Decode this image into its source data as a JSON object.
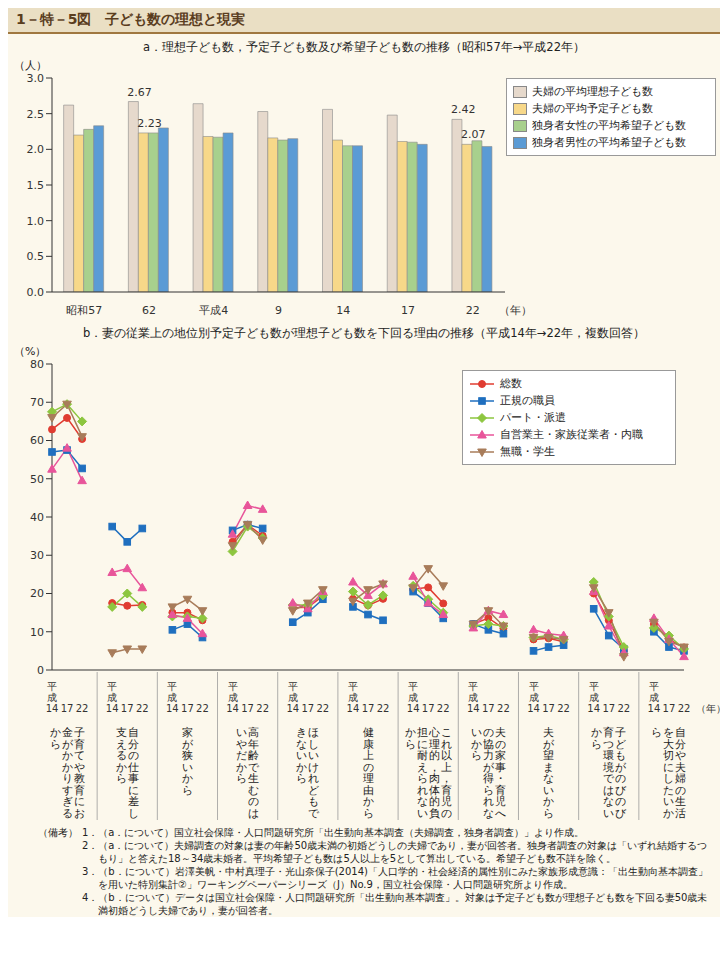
{
  "header": "1－特－5図　子ども数の理想と現実",
  "chart_data": [
    {
      "type": "bar",
      "title": "a．理想子ども数，予定子ども数及び希望子ども数の推移（昭和57年→平成22年）",
      "y_label": "（人）",
      "x_label": "（年）",
      "categories": [
        "昭和57",
        "62",
        "平成4",
        "9",
        "14",
        "17",
        "22"
      ],
      "series": [
        {
          "name": "夫婦の平均理想子ども数",
          "color": "#e6d9cc",
          "values": [
            2.62,
            2.67,
            2.64,
            2.53,
            2.56,
            2.48,
            2.42
          ]
        },
        {
          "name": "夫婦の平均予定子ども数",
          "color": "#f7d889",
          "values": [
            2.2,
            2.23,
            2.18,
            2.16,
            2.13,
            2.11,
            2.07
          ]
        },
        {
          "name": "独身者女性の平均希望子ども数",
          "color": "#a8d08d",
          "values": [
            2.28,
            2.23,
            2.17,
            2.13,
            2.05,
            2.1,
            2.12
          ]
        },
        {
          "name": "独身者男性の平均希望子ども数",
          "color": "#5b9bd5",
          "values": [
            2.33,
            2.3,
            2.23,
            2.15,
            2.05,
            2.07,
            2.04
          ]
        }
      ],
      "annotations": [
        {
          "category": "62",
          "series": "夫婦の平均理想子ども数",
          "label": "2.67"
        },
        {
          "category": "62",
          "series": "夫婦の平均予定子ども数",
          "label": "2.23"
        },
        {
          "category": "22",
          "series": "夫婦の平均理想子ども数",
          "label": "2.42"
        },
        {
          "category": "22",
          "series": "夫婦の平均予定子ども数",
          "label": "2.07"
        }
      ],
      "ylim": [
        0,
        3
      ],
      "yticks": [
        {
          "value": 0,
          "label": "0.0"
        },
        0.5,
        {
          "value": 1,
          "label": "1.0"
        },
        1.5,
        {
          "value": 2,
          "label": "2.0"
        },
        2.5,
        {
          "value": 3,
          "label": "3.0"
        }
      ],
      "grid": false,
      "legend": "right"
    },
    {
      "type": "line",
      "title": "b．妻の従業上の地位別予定子ども数が理想子ども数を下回る理由の推移（平成14年→22年，複数回答）",
      "y_label": "（%）",
      "x_label": "（年）",
      "categories": [
        "平成14",
        "17",
        "22",
        null,
        "平成14",
        "17",
        "22",
        null,
        "平成14",
        "17",
        "22",
        null,
        "平成14",
        "17",
        "22",
        null,
        "平成14",
        "17",
        "22",
        null,
        "平成14",
        "17",
        "22",
        null,
        "平成14",
        "17",
        "22",
        null,
        "平成14",
        "17",
        "22",
        null,
        "平成14",
        "17",
        "22",
        null,
        "平成14",
        "17",
        "22",
        null,
        "平成14",
        "17",
        "22"
      ],
      "groups": [
        "子育てや教育にお金がかかりすぎるから",
        "自分の仕事に差し支えるから",
        "家が狭いから",
        "高年齢で生むのはいやだから",
        "ほしいけれどもできないから",
        "健康上の理由から",
        "これ以上，育児の心理的，肉体的負担に耐えられないから",
        "夫の家事・育児への協力が得られないから",
        "夫が望まないから",
        "子どもがのびのび育つ環境ではないから",
        "自分や夫婦の生活を大切にしたいから"
      ],
      "series": [
        {
          "name": "総数",
          "color": "#e03c31",
          "marker": "circle",
          "values": [
            62.9,
            65.9,
            60.4,
            null,
            17.5,
            16.8,
            17.0,
            null,
            15.0,
            15.0,
            13.0,
            null,
            33.5,
            38.0,
            35.1,
            null,
            16.3,
            16.4,
            19.3,
            null,
            18.6,
            16.9,
            18.6,
            null,
            21.1,
            21.6,
            17.4,
            null,
            12.0,
            13.6,
            10.9,
            null,
            8.0,
            8.3,
            7.4,
            null,
            20.0,
            13.0,
            5.0,
            null,
            12.0,
            8.0,
            5.9
          ]
        },
        {
          "name": "正規の職員",
          "color": "#1f6fbf",
          "marker": "square",
          "values": [
            57.0,
            57.5,
            52.7,
            null,
            37.5,
            33.5,
            37.0,
            null,
            10.5,
            12.0,
            8.5,
            null,
            36.5,
            38.0,
            37.0,
            null,
            12.5,
            15.0,
            18.5,
            null,
            16.5,
            14.5,
            13.0,
            null,
            20.5,
            17.5,
            13.5,
            null,
            12.0,
            10.5,
            9.5,
            null,
            5.0,
            6.0,
            6.5,
            null,
            16.0,
            9.0,
            5.5,
            null,
            10.0,
            6.0,
            5.0
          ]
        },
        {
          "name": "パート・派遣",
          "color": "#8dc63f",
          "marker": "diamond",
          "values": [
            67.5,
            69.5,
            65.0,
            null,
            16.5,
            20.0,
            16.5,
            null,
            14.0,
            14.0,
            13.5,
            null,
            31.0,
            37.5,
            34.5,
            null,
            17.0,
            17.0,
            19.5,
            null,
            20.5,
            17.0,
            19.5,
            null,
            22.0,
            18.5,
            15.0,
            null,
            11.5,
            12.0,
            11.5,
            null,
            8.5,
            9.0,
            8.0,
            null,
            23.0,
            14.0,
            6.0,
            null,
            11.0,
            9.0,
            5.5
          ]
        },
        {
          "name": "自営業主・家族従業者・内職",
          "color": "#e8559a",
          "marker": "triangle",
          "values": [
            52.5,
            58.0,
            49.5,
            null,
            25.5,
            26.5,
            21.5,
            null,
            14.5,
            13.5,
            9.5,
            null,
            35.5,
            43.0,
            42.0,
            null,
            17.5,
            16.0,
            20.5,
            null,
            23.0,
            19.5,
            22.5,
            null,
            24.5,
            17.5,
            14.5,
            null,
            11.0,
            15.5,
            14.5,
            null,
            10.5,
            9.5,
            9.0,
            null,
            20.5,
            11.5,
            4.5,
            null,
            13.5,
            8.0,
            3.5
          ]
        },
        {
          "name": "無職・学生",
          "color": "#a87c5a",
          "marker": "triangle-down",
          "values": [
            66.0,
            69.5,
            61.0,
            null,
            4.5,
            5.5,
            5.5,
            null,
            16.5,
            18.5,
            15.5,
            null,
            32.5,
            38.0,
            34.0,
            null,
            15.5,
            17.5,
            21.0,
            null,
            18.0,
            21.0,
            22.5,
            null,
            21.5,
            26.5,
            22.0,
            null,
            12.0,
            15.5,
            11.5,
            null,
            8.5,
            8.5,
            8.0,
            null,
            21.5,
            15.0,
            3.5,
            null,
            12.5,
            7.5,
            6.0
          ]
        }
      ],
      "ylim": [
        0,
        80
      ],
      "yticks": [
        0,
        10,
        20,
        30,
        40,
        50,
        60,
        70,
        80
      ],
      "grid": false,
      "legend": "upper right"
    }
  ],
  "notes_title": "（備考）",
  "notes": [
    "1．（a．について）国立社会保障・人口問題研究所「出生動向基本調査（夫婦調査，独身者調査）」より作成。",
    "2．（a．について）夫婦調査の対象は妻の年齢50歳未満の初婚どうしの夫婦であり，妻が回答者。独身者調査の対象は「いずれ結婚するつもり」と答えた18～34歳未婚者。平均希望子ども数は5人以上を5として算出している。希望子ども数不詳を除く。",
    "3．（b．について）岩澤美帆・中村真理子・光山奈保子(2014)「人口学的・社会経済的属性別にみた家族形成意識：「出生動向基本調査」を用いた特別集計②」ワーキングペーパーシリーズ（J）No.9，国立社会保障・人口問題研究所より作成。",
    "4．（b．について）データは国立社会保障・人口問題研究所「出生動向基本調査」。対象は予定子ども数が理想子ども数を下回る妻50歳未満初婚どうし夫婦であり，妻が回答者。"
  ]
}
